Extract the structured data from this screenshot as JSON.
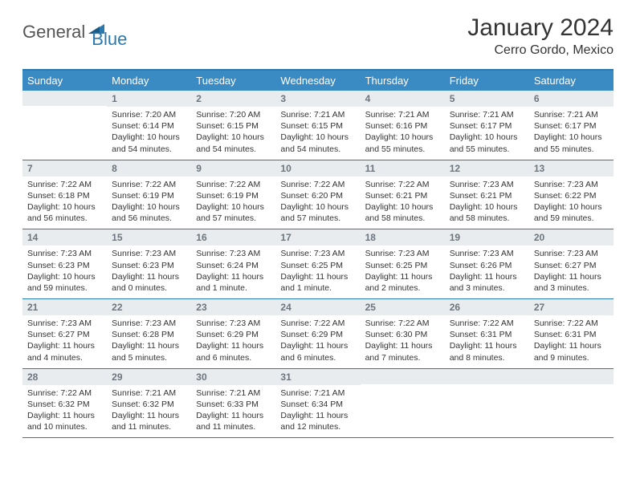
{
  "brand": {
    "part1": "General",
    "part2": "Blue"
  },
  "title": "January 2024",
  "location": "Cerro Gordo, Mexico",
  "colors": {
    "header_bg": "#3a8ac4",
    "rule": "#2a7ab0",
    "daynum_bg": "#e9ecef",
    "daynum_fg": "#6c757d",
    "text": "#333333",
    "logo_gray": "#555555",
    "logo_blue": "#2a7ab0",
    "page_bg": "#ffffff"
  },
  "day_labels": [
    "Sunday",
    "Monday",
    "Tuesday",
    "Wednesday",
    "Thursday",
    "Friday",
    "Saturday"
  ],
  "weeks": [
    [
      null,
      {
        "n": "1",
        "sr": "Sunrise: 7:20 AM",
        "ss": "Sunset: 6:14 PM",
        "dl": "Daylight: 10 hours and 54 minutes."
      },
      {
        "n": "2",
        "sr": "Sunrise: 7:20 AM",
        "ss": "Sunset: 6:15 PM",
        "dl": "Daylight: 10 hours and 54 minutes."
      },
      {
        "n": "3",
        "sr": "Sunrise: 7:21 AM",
        "ss": "Sunset: 6:15 PM",
        "dl": "Daylight: 10 hours and 54 minutes."
      },
      {
        "n": "4",
        "sr": "Sunrise: 7:21 AM",
        "ss": "Sunset: 6:16 PM",
        "dl": "Daylight: 10 hours and 55 minutes."
      },
      {
        "n": "5",
        "sr": "Sunrise: 7:21 AM",
        "ss": "Sunset: 6:17 PM",
        "dl": "Daylight: 10 hours and 55 minutes."
      },
      {
        "n": "6",
        "sr": "Sunrise: 7:21 AM",
        "ss": "Sunset: 6:17 PM",
        "dl": "Daylight: 10 hours and 55 minutes."
      }
    ],
    [
      {
        "n": "7",
        "sr": "Sunrise: 7:22 AM",
        "ss": "Sunset: 6:18 PM",
        "dl": "Daylight: 10 hours and 56 minutes."
      },
      {
        "n": "8",
        "sr": "Sunrise: 7:22 AM",
        "ss": "Sunset: 6:19 PM",
        "dl": "Daylight: 10 hours and 56 minutes."
      },
      {
        "n": "9",
        "sr": "Sunrise: 7:22 AM",
        "ss": "Sunset: 6:19 PM",
        "dl": "Daylight: 10 hours and 57 minutes."
      },
      {
        "n": "10",
        "sr": "Sunrise: 7:22 AM",
        "ss": "Sunset: 6:20 PM",
        "dl": "Daylight: 10 hours and 57 minutes."
      },
      {
        "n": "11",
        "sr": "Sunrise: 7:22 AM",
        "ss": "Sunset: 6:21 PM",
        "dl": "Daylight: 10 hours and 58 minutes."
      },
      {
        "n": "12",
        "sr": "Sunrise: 7:23 AM",
        "ss": "Sunset: 6:21 PM",
        "dl": "Daylight: 10 hours and 58 minutes."
      },
      {
        "n": "13",
        "sr": "Sunrise: 7:23 AM",
        "ss": "Sunset: 6:22 PM",
        "dl": "Daylight: 10 hours and 59 minutes."
      }
    ],
    [
      {
        "n": "14",
        "sr": "Sunrise: 7:23 AM",
        "ss": "Sunset: 6:23 PM",
        "dl": "Daylight: 10 hours and 59 minutes."
      },
      {
        "n": "15",
        "sr": "Sunrise: 7:23 AM",
        "ss": "Sunset: 6:23 PM",
        "dl": "Daylight: 11 hours and 0 minutes."
      },
      {
        "n": "16",
        "sr": "Sunrise: 7:23 AM",
        "ss": "Sunset: 6:24 PM",
        "dl": "Daylight: 11 hours and 1 minute."
      },
      {
        "n": "17",
        "sr": "Sunrise: 7:23 AM",
        "ss": "Sunset: 6:25 PM",
        "dl": "Daylight: 11 hours and 1 minute."
      },
      {
        "n": "18",
        "sr": "Sunrise: 7:23 AM",
        "ss": "Sunset: 6:25 PM",
        "dl": "Daylight: 11 hours and 2 minutes."
      },
      {
        "n": "19",
        "sr": "Sunrise: 7:23 AM",
        "ss": "Sunset: 6:26 PM",
        "dl": "Daylight: 11 hours and 3 minutes."
      },
      {
        "n": "20",
        "sr": "Sunrise: 7:23 AM",
        "ss": "Sunset: 6:27 PM",
        "dl": "Daylight: 11 hours and 3 minutes."
      }
    ],
    [
      {
        "n": "21",
        "sr": "Sunrise: 7:23 AM",
        "ss": "Sunset: 6:27 PM",
        "dl": "Daylight: 11 hours and 4 minutes."
      },
      {
        "n": "22",
        "sr": "Sunrise: 7:23 AM",
        "ss": "Sunset: 6:28 PM",
        "dl": "Daylight: 11 hours and 5 minutes."
      },
      {
        "n": "23",
        "sr": "Sunrise: 7:23 AM",
        "ss": "Sunset: 6:29 PM",
        "dl": "Daylight: 11 hours and 6 minutes."
      },
      {
        "n": "24",
        "sr": "Sunrise: 7:22 AM",
        "ss": "Sunset: 6:29 PM",
        "dl": "Daylight: 11 hours and 6 minutes."
      },
      {
        "n": "25",
        "sr": "Sunrise: 7:22 AM",
        "ss": "Sunset: 6:30 PM",
        "dl": "Daylight: 11 hours and 7 minutes."
      },
      {
        "n": "26",
        "sr": "Sunrise: 7:22 AM",
        "ss": "Sunset: 6:31 PM",
        "dl": "Daylight: 11 hours and 8 minutes."
      },
      {
        "n": "27",
        "sr": "Sunrise: 7:22 AM",
        "ss": "Sunset: 6:31 PM",
        "dl": "Daylight: 11 hours and 9 minutes."
      }
    ],
    [
      {
        "n": "28",
        "sr": "Sunrise: 7:22 AM",
        "ss": "Sunset: 6:32 PM",
        "dl": "Daylight: 11 hours and 10 minutes."
      },
      {
        "n": "29",
        "sr": "Sunrise: 7:21 AM",
        "ss": "Sunset: 6:32 PM",
        "dl": "Daylight: 11 hours and 11 minutes."
      },
      {
        "n": "30",
        "sr": "Sunrise: 7:21 AM",
        "ss": "Sunset: 6:33 PM",
        "dl": "Daylight: 11 hours and 11 minutes."
      },
      {
        "n": "31",
        "sr": "Sunrise: 7:21 AM",
        "ss": "Sunset: 6:34 PM",
        "dl": "Daylight: 11 hours and 12 minutes."
      },
      null,
      null,
      null
    ]
  ]
}
